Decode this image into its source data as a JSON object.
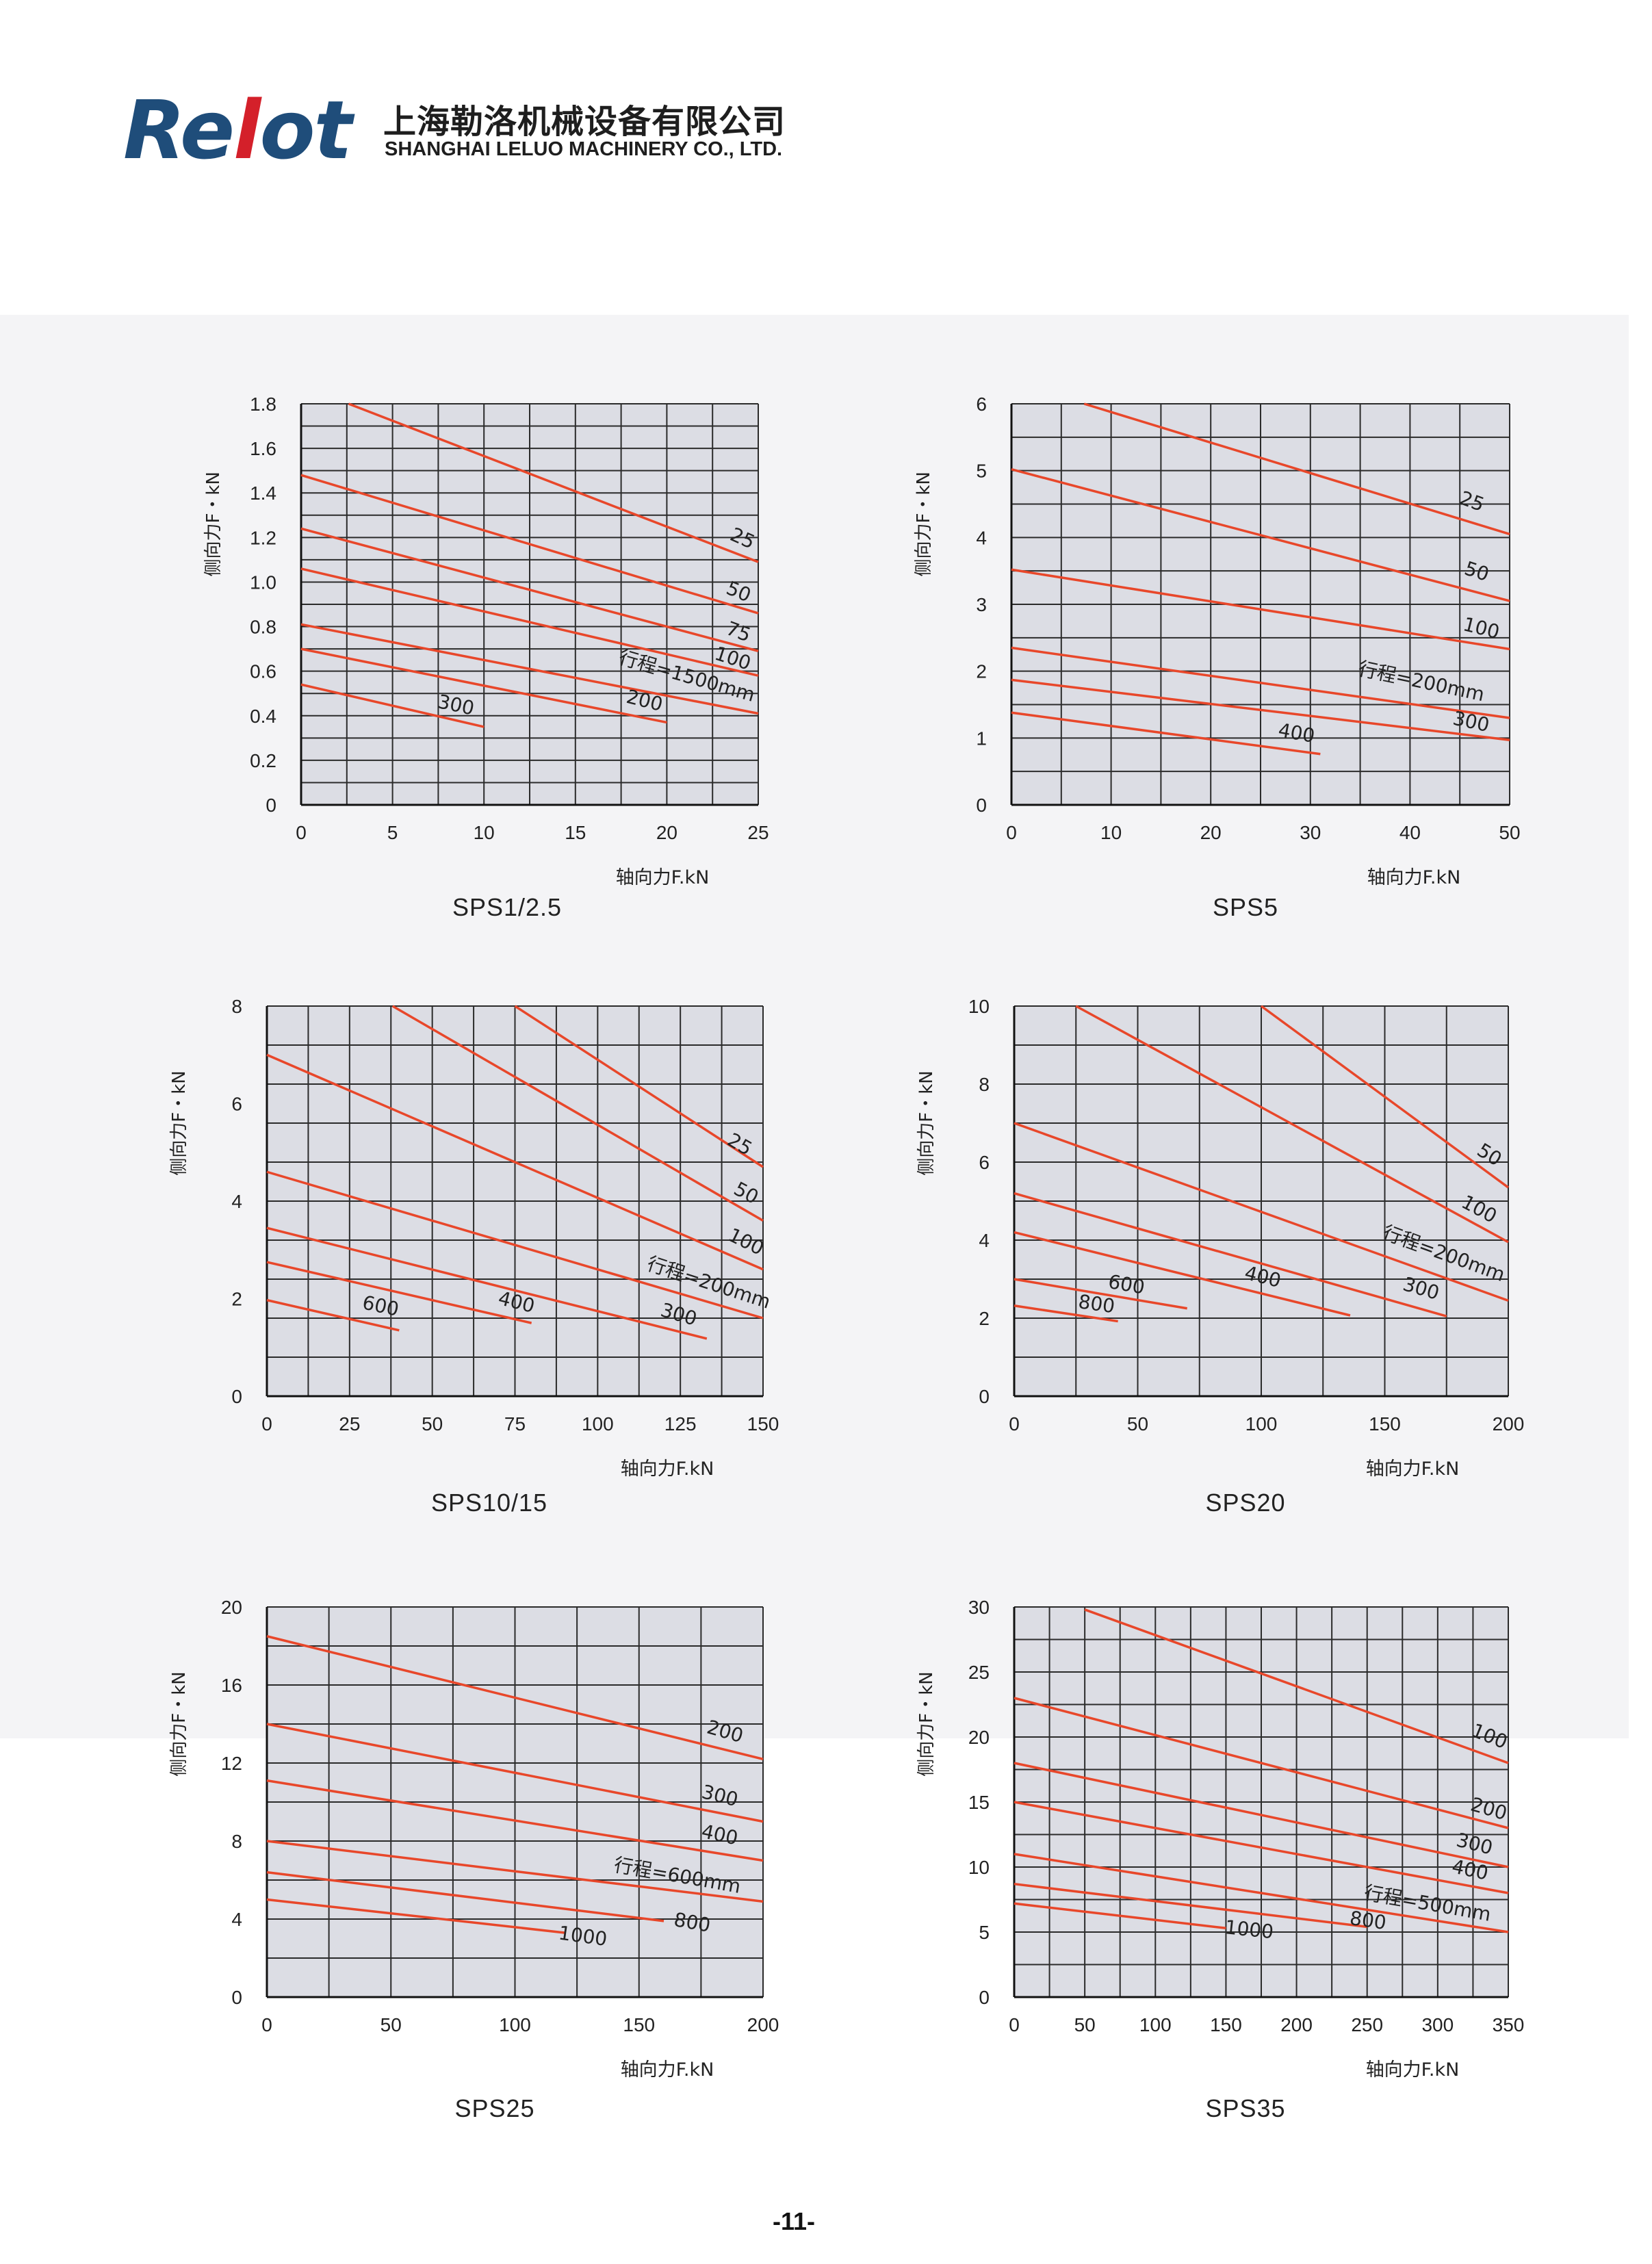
{
  "header": {
    "logo_part1": "Re",
    "logo_part2": "l",
    "logo_part3": "ot",
    "company_cn": "上海勒洛机械设备有限公司",
    "company_en": "SHANGHAI LELUO MACHINERY CO., LTD.",
    "logo_color": "#1f4d7a",
    "logo_accent_color": "#d4202a"
  },
  "page_number": "-11-",
  "line_color": "#e8472a",
  "chart_data": [
    {
      "type": "line",
      "title": "SPS1/2.5",
      "xlabel": "轴向力F.kN",
      "ylabel": "侧向力F・kN",
      "xlim": [
        0,
        25
      ],
      "ylim": [
        0,
        1.8
      ],
      "xticks": [
        "0",
        "5",
        "10",
        "15",
        "20",
        "25"
      ],
      "yticks": [
        "0",
        "0.2",
        "0.4",
        "0.6",
        "0.8",
        "1.0",
        "1.2",
        "1.4",
        "1.6",
        "1.8"
      ],
      "ytick_values": [
        0,
        0.2,
        0.4,
        0.6,
        0.8,
        1.0,
        1.2,
        1.4,
        1.6,
        1.8
      ],
      "grid": true,
      "series": [
        {
          "name": "25",
          "x": [
            2.6,
            25
          ],
          "y": [
            1.8,
            1.09
          ],
          "label_at": [
            24,
            1.17
          ],
          "label_angle": 24
        },
        {
          "name": "50",
          "x": [
            0,
            25
          ],
          "y": [
            1.48,
            0.86
          ],
          "label_at": [
            23.8,
            0.93
          ],
          "label_angle": 22
        },
        {
          "name": "75",
          "x": [
            0,
            25
          ],
          "y": [
            1.24,
            0.69
          ],
          "label_at": [
            23.8,
            0.75
          ],
          "label_angle": 20
        },
        {
          "name": "100",
          "x": [
            0,
            25
          ],
          "y": [
            1.06,
            0.58
          ],
          "label_at": [
            23.5,
            0.63
          ],
          "label_angle": 18
        },
        {
          "name": "行程=1500mm",
          "x": [
            0,
            25
          ],
          "y": [
            0.81,
            0.41
          ],
          "label_at": [
            21,
            0.55
          ],
          "label_angle": 16
        },
        {
          "name": "200",
          "x": [
            0,
            20
          ],
          "y": [
            0.7,
            0.37
          ],
          "label_at": [
            18.7,
            0.44
          ],
          "label_angle": 14
        },
        {
          "name": "300",
          "x": [
            0,
            10
          ],
          "y": [
            0.54,
            0.35
          ],
          "label_at": [
            8.4,
            0.42
          ],
          "label_angle": 12
        }
      ]
    },
    {
      "type": "line",
      "title": "SPS5",
      "xlabel": "轴向力F.kN",
      "ylabel": "侧向力F・kN",
      "xlim": [
        0,
        50
      ],
      "ylim": [
        0,
        6
      ],
      "xticks": [
        "0",
        "10",
        "20",
        "30",
        "40",
        "50"
      ],
      "yticks": [
        "0",
        "1",
        "2",
        "3",
        "4",
        "5",
        "6"
      ],
      "ytick_values": [
        0,
        1,
        2,
        3,
        4,
        5,
        6
      ],
      "grid": true,
      "series": [
        {
          "name": "25",
          "x": [
            7.3,
            50
          ],
          "y": [
            6.0,
            4.05
          ],
          "label_at": [
            46,
            4.45
          ],
          "label_angle": 20
        },
        {
          "name": "50",
          "x": [
            0,
            50
          ],
          "y": [
            5.02,
            3.05
          ],
          "label_at": [
            46.5,
            3.4
          ],
          "label_angle": 18
        },
        {
          "name": "100",
          "x": [
            0,
            50
          ],
          "y": [
            3.52,
            2.33
          ],
          "label_at": [
            47,
            2.55
          ],
          "label_angle": 14
        },
        {
          "name": "行程=200mm",
          "x": [
            0,
            50
          ],
          "y": [
            2.35,
            1.3
          ],
          "label_at": [
            41,
            1.75
          ],
          "label_angle": 12
        },
        {
          "name": "300",
          "x": [
            0,
            50
          ],
          "y": [
            1.87,
            0.97
          ],
          "label_at": [
            46,
            1.15
          ],
          "label_angle": 12
        },
        {
          "name": "400",
          "x": [
            0,
            31
          ],
          "y": [
            1.38,
            0.76
          ],
          "label_at": [
            28.5,
            0.98
          ],
          "label_angle": 10
        }
      ]
    },
    {
      "type": "line",
      "title": "SPS10/15",
      "xlabel": "轴向力F.kN",
      "ylabel": "侧向力F・kN",
      "xlim": [
        0,
        150
      ],
      "ylim": [
        0,
        8
      ],
      "xticks": [
        "0",
        "25",
        "50",
        "75",
        "100",
        "125",
        "150"
      ],
      "yticks": [
        "0",
        "2",
        "4",
        "6",
        "8"
      ],
      "ytick_values": [
        0,
        2,
        4,
        6,
        8
      ],
      "grid": true,
      "series": [
        {
          "name": "25",
          "x": [
            75,
            150
          ],
          "y": [
            8.0,
            4.7
          ],
          "label_at": [
            142,
            5.05
          ],
          "label_angle": 30
        },
        {
          "name": "50",
          "x": [
            38,
            150
          ],
          "y": [
            8.0,
            3.6
          ],
          "label_at": [
            144,
            4.05
          ],
          "label_angle": 28
        },
        {
          "name": "100",
          "x": [
            0,
            150
          ],
          "y": [
            7.0,
            2.6
          ],
          "label_at": [
            144,
            3.05
          ],
          "label_angle": 26
        },
        {
          "name": "行程=200mm",
          "x": [
            0,
            150
          ],
          "y": [
            4.6,
            1.6
          ],
          "label_at": [
            133,
            2.2
          ],
          "label_angle": 18
        },
        {
          "name": "300",
          "x": [
            0,
            133
          ],
          "y": [
            3.45,
            1.18
          ],
          "label_at": [
            124,
            1.55
          ],
          "label_angle": 16
        },
        {
          "name": "400",
          "x": [
            0,
            80
          ],
          "y": [
            2.75,
            1.5
          ],
          "label_at": [
            75,
            1.8
          ],
          "label_angle": 14
        },
        {
          "name": "600",
          "x": [
            0,
            40
          ],
          "y": [
            1.97,
            1.35
          ],
          "label_at": [
            34,
            1.72
          ],
          "label_angle": 12
        }
      ]
    },
    {
      "type": "line",
      "title": "SPS20",
      "xlabel": "轴向力F.kN",
      "ylabel": "侧向力F・kN",
      "xlim": [
        0,
        200
      ],
      "ylim": [
        0,
        10
      ],
      "xticks": [
        "0",
        "50",
        "100",
        "150",
        "200"
      ],
      "yticks": [
        "0",
        "2",
        "4",
        "6",
        "8",
        "10"
      ],
      "ytick_values": [
        0,
        2,
        4,
        6,
        8,
        10
      ],
      "grid": true,
      "series": [
        {
          "name": "50",
          "x": [
            100,
            200
          ],
          "y": [
            10.0,
            5.35
          ],
          "label_at": [
            191,
            6.05
          ],
          "label_angle": 32
        },
        {
          "name": "100",
          "x": [
            25,
            200
          ],
          "y": [
            10.0,
            3.95
          ],
          "label_at": [
            187,
            4.65
          ],
          "label_angle": 28
        },
        {
          "name": "行程=200mm",
          "x": [
            0,
            200
          ],
          "y": [
            7.0,
            2.45
          ],
          "label_at": [
            173,
            3.5
          ],
          "label_angle": 20
        },
        {
          "name": "300",
          "x": [
            0,
            175
          ],
          "y": [
            5.2,
            2.05
          ],
          "label_at": [
            164,
            2.6
          ],
          "label_angle": 16
        },
        {
          "name": "400",
          "x": [
            0,
            136
          ],
          "y": [
            4.2,
            2.07
          ],
          "label_at": [
            100,
            2.9
          ],
          "label_angle": 14
        },
        {
          "name": "600",
          "x": [
            0,
            70
          ],
          "y": [
            3.0,
            2.25
          ],
          "label_at": [
            45,
            2.7
          ],
          "label_angle": 10
        },
        {
          "name": "800",
          "x": [
            0,
            42
          ],
          "y": [
            2.32,
            1.92
          ],
          "label_at": [
            33,
            2.2
          ],
          "label_angle": 8
        }
      ]
    },
    {
      "type": "line",
      "title": "SPS25",
      "xlabel": "轴向力F.kN",
      "ylabel": "侧向力F・kN",
      "xlim": [
        0,
        200
      ],
      "ylim": [
        0,
        20
      ],
      "xticks": [
        "0",
        "50",
        "100",
        "150",
        "200"
      ],
      "yticks": [
        "0",
        "4",
        "8",
        "12",
        "16",
        "20"
      ],
      "ytick_values": [
        0,
        4,
        8,
        12,
        16,
        20
      ],
      "grid": true,
      "series": [
        {
          "name": "200",
          "x": [
            0,
            200
          ],
          "y": [
            18.5,
            12.2
          ],
          "label_at": [
            184,
            13.3
          ],
          "label_angle": 16
        },
        {
          "name": "300",
          "x": [
            0,
            200
          ],
          "y": [
            14.0,
            9.0
          ],
          "label_at": [
            182,
            10.0
          ],
          "label_angle": 14
        },
        {
          "name": "400",
          "x": [
            0,
            200
          ],
          "y": [
            11.1,
            7.0
          ],
          "label_at": [
            182,
            8.0
          ],
          "label_angle": 12
        },
        {
          "name": "行程=600mm",
          "x": [
            0,
            200
          ],
          "y": [
            8.0,
            4.9
          ],
          "label_at": [
            165,
            5.9
          ],
          "label_angle": 10
        },
        {
          "name": "800",
          "x": [
            0,
            160
          ],
          "y": [
            6.4,
            3.9
          ],
          "label_at": [
            171,
            3.5
          ],
          "label_angle": 10
        },
        {
          "name": "1000",
          "x": [
            0,
            120
          ],
          "y": [
            5.0,
            3.3
          ],
          "label_at": [
            127,
            2.8
          ],
          "label_angle": 8
        }
      ]
    },
    {
      "type": "line",
      "title": "SPS35",
      "xlabel": "轴向力F.kN",
      "ylabel": "侧向力F・kN",
      "xlim": [
        0,
        350
      ],
      "ylim": [
        0,
        30
      ],
      "xticks": [
        "0",
        "50",
        "100",
        "150",
        "200",
        "250",
        "300",
        "350"
      ],
      "yticks": [
        "0",
        "5",
        "10",
        "15",
        "20",
        "25",
        "30"
      ],
      "ytick_values": [
        0,
        5,
        10,
        15,
        20,
        25,
        30
      ],
      "grid": true,
      "series": [
        {
          "name": "100",
          "x": [
            50,
            350
          ],
          "y": [
            29.8,
            18.0
          ],
          "label_at": [
            335,
            19.6
          ],
          "label_angle": 22
        },
        {
          "name": "200",
          "x": [
            0,
            350
          ],
          "y": [
            23.0,
            13.0
          ],
          "label_at": [
            335,
            14.0
          ],
          "label_angle": 16
        },
        {
          "name": "300",
          "x": [
            0,
            350
          ],
          "y": [
            18.0,
            10.0
          ],
          "label_at": [
            325,
            11.3
          ],
          "label_angle": 14
        },
        {
          "name": "400",
          "x": [
            0,
            350
          ],
          "y": [
            15.0,
            8.0
          ],
          "label_at": [
            322,
            9.3
          ],
          "label_angle": 12
        },
        {
          "name": "行程=500mm",
          "x": [
            0,
            350
          ],
          "y": [
            11.0,
            5.0
          ],
          "label_at": [
            292,
            6.7
          ],
          "label_angle": 10
        },
        {
          "name": "800",
          "x": [
            0,
            250
          ],
          "y": [
            8.7,
            5.4
          ],
          "label_at": [
            250,
            5.4
          ],
          "label_angle": 8
        },
        {
          "name": "1000",
          "x": [
            0,
            150
          ],
          "y": [
            7.2,
            5.3
          ],
          "label_at": [
            166,
            4.7
          ],
          "label_angle": 6
        }
      ]
    }
  ]
}
